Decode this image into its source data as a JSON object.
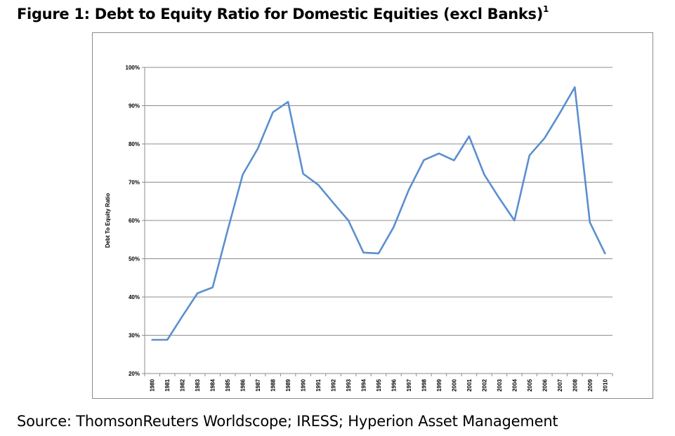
{
  "figure": {
    "title": "Figure 1: Debt to Equity Ratio for Domestic Equities (excl Banks)",
    "footnote_marker": "1",
    "source": "Source: ThomsonReuters Worldscope; IRESS; Hyperion Asset Management"
  },
  "chart_data": {
    "type": "line",
    "title": "",
    "xlabel": "",
    "ylabel": "Debt To Equity Ratio",
    "ylim": [
      20,
      100
    ],
    "y_unit": "%",
    "y_ticks": [
      20,
      30,
      40,
      50,
      60,
      70,
      80,
      90,
      100
    ],
    "grid": "horizontal",
    "legend": "none",
    "line_color": "#5b8fcf",
    "categories": [
      "1980",
      "1981",
      "1982",
      "1983",
      "1984",
      "1985",
      "1986",
      "1987",
      "1988",
      "1989",
      "1990",
      "1991",
      "1992",
      "1993",
      "1994",
      "1995",
      "1996",
      "1997",
      "1998",
      "1999",
      "2000",
      "2001",
      "2002",
      "2003",
      "2004",
      "2005",
      "2006",
      "2007",
      "2008",
      "2009",
      "2010"
    ],
    "series": [
      {
        "values": [
          28.8,
          28.8,
          35.0,
          41.0,
          42.5,
          57.5,
          72.0,
          78.8,
          88.3,
          91.0,
          72.2,
          69.3,
          64.6,
          60.0,
          51.6,
          51.4,
          58.3,
          68.0,
          75.8,
          77.5,
          75.7,
          82.0,
          72.0,
          65.8,
          60.0,
          77.0,
          81.5,
          88.0,
          94.8,
          59.5,
          51.4
        ]
      }
    ]
  }
}
